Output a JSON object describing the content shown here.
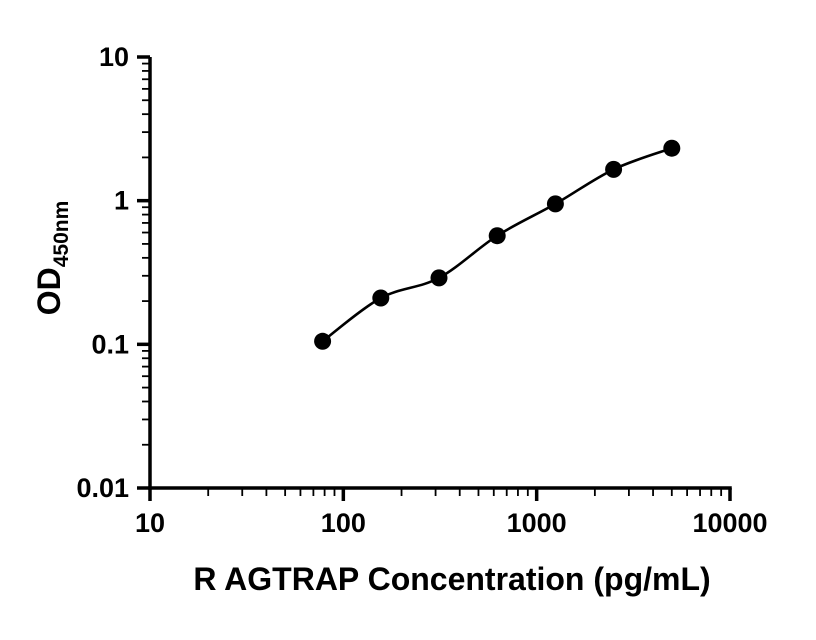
{
  "figure": {
    "background": "#ffffff"
  },
  "chart_data": {
    "type": "scatter",
    "title": "",
    "xlabel": "R AGTRAP Concentration (pg/mL)",
    "ylabel": "OD",
    "ylabel_subscript": "450nm",
    "x_scale": "log10",
    "y_scale": "log10",
    "xlim": [
      10,
      10000
    ],
    "ylim": [
      0.01,
      10
    ],
    "x_ticks": [
      10,
      100,
      1000,
      10000
    ],
    "x_tick_labels": [
      "10",
      "100",
      "1000",
      "10000"
    ],
    "y_ticks": [
      0.01,
      0.1,
      1,
      10
    ],
    "y_tick_labels": [
      "0.01",
      "0.1",
      "1",
      "10"
    ],
    "minor_ticks": true,
    "grid": false,
    "legend": false,
    "axis_color": "#000000",
    "series": [
      {
        "x": [
          78.1,
          156.3,
          312.5,
          625,
          1250,
          2500,
          5000
        ],
        "y": [
          0.105,
          0.21,
          0.29,
          0.57,
          0.95,
          1.65,
          2.32
        ],
        "marker": "filled-circle",
        "color": "#000000",
        "line": "smooth-fit"
      }
    ]
  }
}
